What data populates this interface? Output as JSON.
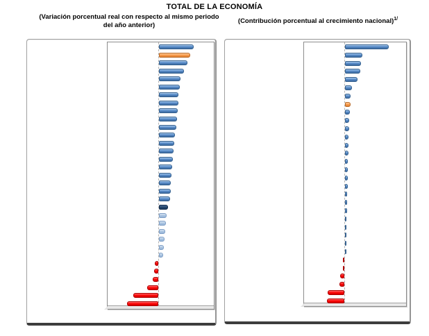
{
  "title": "TOTAL DE LA ECONOMÍA",
  "left_chart": {
    "subtitle": "(Variación porcentual real con respecto al mismo periodo del año anterior)"
  },
  "right_chart": {
    "subtitle_main": "(Contribución porcentual al crecimiento nacional)",
    "superscript": "1/"
  },
  "palette": {
    "blue": "#4F81BD",
    "orange": "#F79646",
    "navy": "#17375E",
    "light_blue": "#95B3D7",
    "red": "#FF0000",
    "frame_border": "#A0A0A0",
    "frame_bottom": "#3D3D3D",
    "axis_line": "#B3B3B3"
  },
  "chart_data": [
    {
      "type": "bar",
      "orientation": "horizontal",
      "title": "(Variación porcentual real con respecto al mismo periodo del año anterior)",
      "sorted": "descending",
      "axis_labels_visible": false,
      "category_labels_visible": false,
      "units": "relative bar length in px (chart has no visible axis scale)",
      "highlight_colors": {
        "orange": "highlighted state",
        "navy": "national total",
        "red": "negative values"
      },
      "bars": [
        {
          "v": 50,
          "c": "blue"
        },
        {
          "v": 45,
          "c": "orange"
        },
        {
          "v": 41,
          "c": "blue"
        },
        {
          "v": 36,
          "c": "blue"
        },
        {
          "v": 31,
          "c": "blue"
        },
        {
          "v": 30,
          "c": "blue"
        },
        {
          "v": 28,
          "c": "blue"
        },
        {
          "v": 28,
          "c": "blue"
        },
        {
          "v": 27,
          "c": "blue"
        },
        {
          "v": 26,
          "c": "blue"
        },
        {
          "v": 25,
          "c": "blue"
        },
        {
          "v": 23,
          "c": "blue"
        },
        {
          "v": 22,
          "c": "blue"
        },
        {
          "v": 21,
          "c": "blue"
        },
        {
          "v": 20,
          "c": "blue"
        },
        {
          "v": 19,
          "c": "blue"
        },
        {
          "v": 18,
          "c": "blue"
        },
        {
          "v": 17,
          "c": "blue"
        },
        {
          "v": 17,
          "c": "blue"
        },
        {
          "v": 16,
          "c": "blue"
        },
        {
          "v": 13,
          "c": "navy"
        },
        {
          "v": 11,
          "c": "light_blue"
        },
        {
          "v": 10,
          "c": "light_blue"
        },
        {
          "v": 9,
          "c": "light_blue"
        },
        {
          "v": 8,
          "c": "light_blue"
        },
        {
          "v": 7,
          "c": "light_blue"
        },
        {
          "v": 6,
          "c": "light_blue"
        },
        {
          "v": -5,
          "c": "red"
        },
        {
          "v": -6,
          "c": "red"
        },
        {
          "v": -8,
          "c": "red"
        },
        {
          "v": -16,
          "c": "red"
        },
        {
          "v": -36,
          "c": "red"
        },
        {
          "v": -45,
          "c": "red"
        }
      ]
    },
    {
      "type": "bar",
      "orientation": "horizontal",
      "title": "(Contribución porcentual al crecimiento nacional)",
      "footnote_marker": "1/",
      "sorted": "descending",
      "axis_labels_visible": false,
      "category_labels_visible": false,
      "units": "relative bar length in px (chart has no visible axis scale)",
      "highlight_colors": {
        "orange": "highlighted state",
        "red": "negative values"
      },
      "bars": [
        {
          "v": 63,
          "c": "blue"
        },
        {
          "v": 25,
          "c": "blue"
        },
        {
          "v": 23,
          "c": "blue"
        },
        {
          "v": 22,
          "c": "blue"
        },
        {
          "v": 18,
          "c": "blue"
        },
        {
          "v": 10,
          "c": "blue"
        },
        {
          "v": 8,
          "c": "blue"
        },
        {
          "v": 8,
          "c": "orange"
        },
        {
          "v": 7,
          "c": "blue"
        },
        {
          "v": 6,
          "c": "blue"
        },
        {
          "v": 6,
          "c": "blue"
        },
        {
          "v": 5,
          "c": "blue"
        },
        {
          "v": 5,
          "c": "blue"
        },
        {
          "v": 5,
          "c": "blue"
        },
        {
          "v": 4,
          "c": "blue"
        },
        {
          "v": 4,
          "c": "blue"
        },
        {
          "v": 4,
          "c": "blue"
        },
        {
          "v": 4,
          "c": "blue"
        },
        {
          "v": 3,
          "c": "blue"
        },
        {
          "v": 3,
          "c": "blue"
        },
        {
          "v": 3,
          "c": "blue"
        },
        {
          "v": 2,
          "c": "blue"
        },
        {
          "v": 2,
          "c": "blue"
        },
        {
          "v": 2,
          "c": "blue"
        },
        {
          "v": 2,
          "c": "blue"
        },
        {
          "v": 1,
          "c": "blue"
        },
        {
          "v": -1,
          "c": "red"
        },
        {
          "v": -2,
          "c": "red"
        },
        {
          "v": -6,
          "c": "red"
        },
        {
          "v": -7,
          "c": "red"
        },
        {
          "v": -24,
          "c": "red"
        },
        {
          "v": -25,
          "c": "red"
        }
      ]
    }
  ]
}
